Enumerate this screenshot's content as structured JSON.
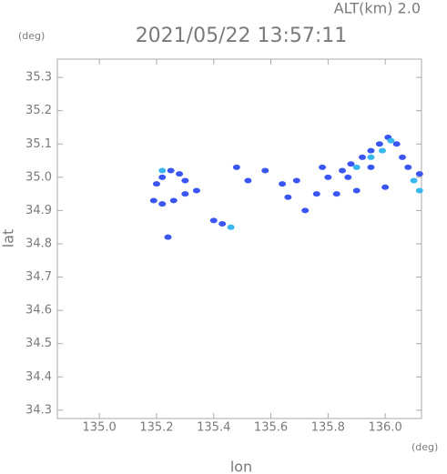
{
  "chart_data": {
    "type": "scatter",
    "title": "2021/05/22 13:57:11",
    "subtitle": "ALT(km) 2.0",
    "y_unit": "(deg)",
    "x_unit": "(deg)",
    "x_label": "lon",
    "y_label": "lat",
    "xlim": [
      134.853,
      136.127
    ],
    "ylim": [
      34.275,
      35.355
    ],
    "xticks": [
      {
        "value": 135,
        "label": "135.0"
      },
      135.2,
      135.4,
      135.6,
      135.8,
      {
        "value": 136,
        "label": "136.0"
      }
    ],
    "yticks": [
      34.3,
      34.4,
      34.5,
      34.6,
      34.7,
      34.8,
      34.9,
      {
        "value": 35,
        "label": "35.0"
      },
      35.1,
      35.2,
      35.3
    ],
    "series": [
      {
        "color": "#3a55f2",
        "x": [
          135.2,
          135.22,
          135.25,
          135.28,
          135.3,
          135.19,
          135.22,
          135.26,
          135.3,
          135.34,
          135.4,
          135.43,
          135.24,
          135.52,
          135.48,
          135.58,
          135.64,
          135.66,
          135.69,
          135.72,
          135.76,
          135.8,
          135.85,
          135.88,
          135.92,
          135.95,
          135.98,
          136.01,
          136.04,
          136.06,
          136.08,
          136.12,
          135.83,
          135.9,
          136.0,
          135.95,
          135.87,
          135.78
        ],
        "values": [
          34.98,
          35.0,
          35.02,
          35.01,
          34.99,
          34.93,
          34.92,
          34.93,
          34.95,
          34.96,
          34.87,
          34.86,
          34.82,
          34.99,
          35.03,
          35.02,
          34.98,
          34.94,
          34.99,
          34.9,
          34.95,
          35.0,
          35.02,
          35.04,
          35.06,
          35.08,
          35.1,
          35.12,
          35.1,
          35.06,
          35.03,
          35.01,
          34.95,
          34.96,
          34.97,
          35.03,
          35.0,
          35.03
        ]
      },
      {
        "color": "#38b6ee",
        "x": [
          135.22,
          135.46,
          135.95,
          135.99,
          136.02,
          136.1,
          136.12,
          135.9
        ],
        "values": [
          35.02,
          34.85,
          35.06,
          35.08,
          35.11,
          34.99,
          34.96,
          35.03
        ]
      }
    ]
  }
}
